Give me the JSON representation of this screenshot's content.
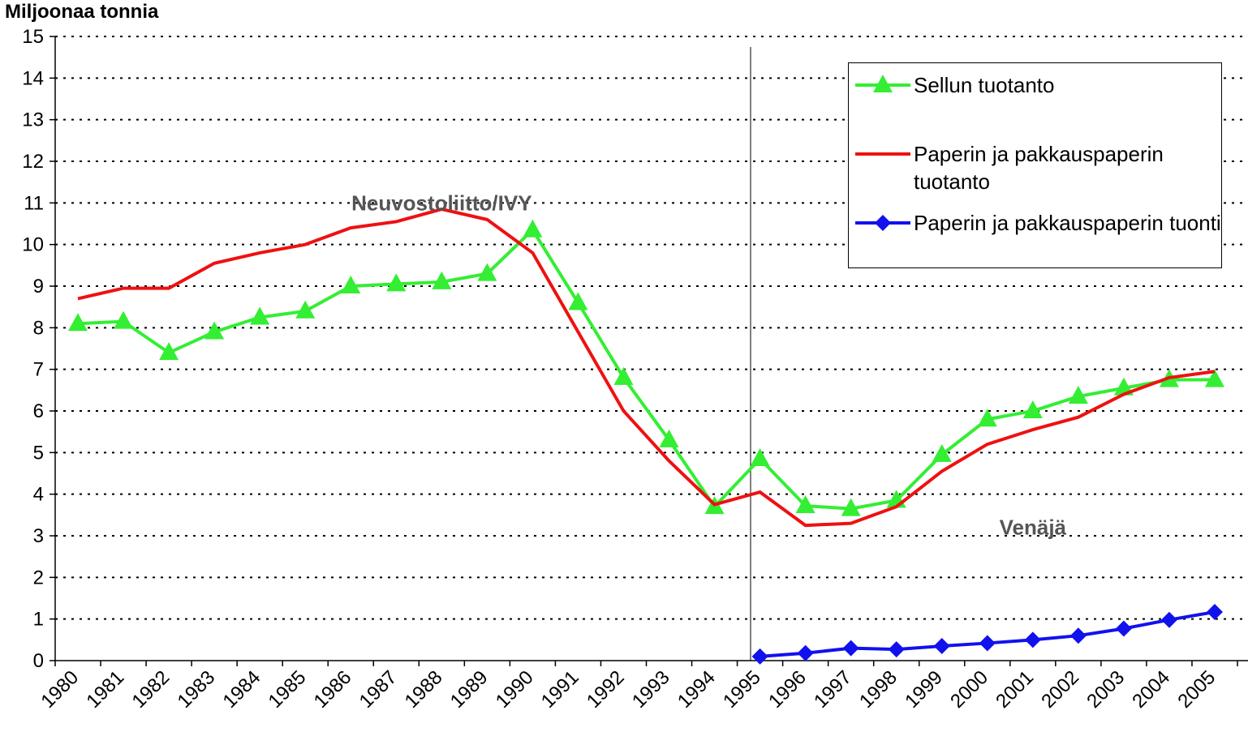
{
  "chart_data": {
    "type": "line",
    "y_axis_label": "Miljoonaa tonnia",
    "categories": [
      "1980",
      "1981",
      "1982",
      "1983",
      "1984",
      "1985",
      "1986",
      "1987",
      "1988",
      "1989",
      "1990",
      "1991",
      "1992",
      "1993",
      "1994",
      "1995",
      "1996",
      "1997",
      "1998",
      "1999",
      "2000",
      "2001",
      "2002",
      "2003",
      "2004",
      "2005"
    ],
    "series": [
      {
        "name": "Sellun tuotanto",
        "color": "#33ee33",
        "marker": "triangle",
        "values": [
          8.1,
          8.15,
          7.4,
          7.9,
          8.25,
          8.4,
          9.0,
          9.05,
          9.1,
          9.3,
          10.35,
          8.6,
          6.8,
          5.3,
          3.7,
          4.85,
          3.72,
          3.65,
          3.85,
          4.95,
          5.8,
          6.0,
          6.35,
          6.55,
          6.75,
          6.75
        ]
      },
      {
        "name": "Paperin ja pakkauspaperin tuotanto",
        "color": "#ee1111",
        "marker": "none",
        "values": [
          8.7,
          8.95,
          8.95,
          9.55,
          9.8,
          10.0,
          10.4,
          10.55,
          10.85,
          10.6,
          9.8,
          7.9,
          6.0,
          4.8,
          3.75,
          4.05,
          3.25,
          3.3,
          3.7,
          4.55,
          5.2,
          5.55,
          5.85,
          6.4,
          6.8,
          6.95
        ]
      },
      {
        "name": "Paperin ja pakkauspaperin tuonti",
        "color": "#1111ee",
        "marker": "diamond",
        "values": [
          null,
          null,
          null,
          null,
          null,
          null,
          null,
          null,
          null,
          null,
          null,
          null,
          null,
          null,
          null,
          0.1,
          0.18,
          0.3,
          0.27,
          0.35,
          0.42,
          0.5,
          0.6,
          0.77,
          0.98,
          1.17
        ]
      }
    ],
    "annotations": [
      {
        "text": "Neuvostoliitto/IVY",
        "x": "1988",
        "y": 11.0
      },
      {
        "text": "Venäjä",
        "x": "2001",
        "y": 3.2
      }
    ],
    "ylim": [
      0,
      15
    ],
    "yticks": [
      0,
      1,
      2,
      3,
      4,
      5,
      6,
      7,
      8,
      9,
      10,
      11,
      12,
      13,
      14,
      15
    ],
    "grid": true
  }
}
